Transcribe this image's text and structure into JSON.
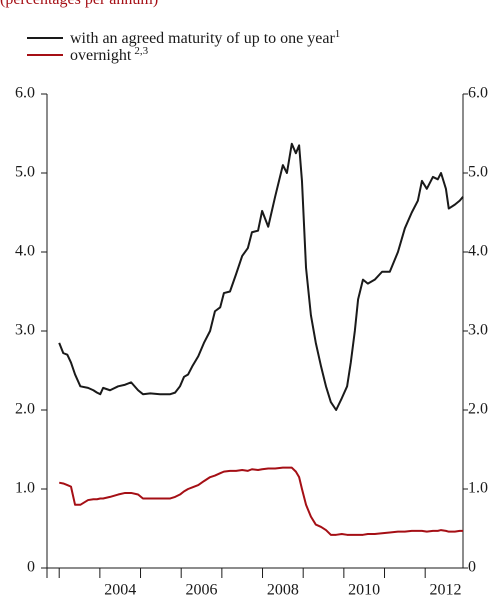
{
  "chart_data": {
    "type": "line",
    "subtitle": "(percentages per annum)",
    "x": [
      2003.0,
      2003.1,
      2003.2,
      2003.29,
      2003.39,
      2003.52,
      2003.71,
      2003.84,
      2003.93,
      2004.01,
      2004.08,
      2004.25,
      2004.45,
      2004.62,
      2004.77,
      2004.94,
      2005.06,
      2005.24,
      2005.48,
      2005.73,
      2005.85,
      2005.97,
      2006.07,
      2006.17,
      2006.27,
      2006.42,
      2006.56,
      2006.71,
      2006.83,
      2006.96,
      2007.05,
      2007.2,
      2007.35,
      2007.5,
      2007.64,
      2007.74,
      2007.89,
      2007.99,
      2008.14,
      2008.31,
      2008.5,
      2008.6,
      2008.72,
      2008.82,
      2008.9,
      2008.97,
      2009.07,
      2009.19,
      2009.31,
      2009.44,
      2009.56,
      2009.68,
      2009.81,
      2009.95,
      2010.08,
      2010.17,
      2010.27,
      2010.35,
      2010.47,
      2010.59,
      2010.76,
      2010.94,
      2011.13,
      2011.33,
      2011.5,
      2011.67,
      2011.82,
      2011.92,
      2012.04,
      2012.19,
      2012.31,
      2012.39,
      2012.51,
      2012.58,
      2012.73,
      2012.85,
      2012.93
    ],
    "series": [
      {
        "name": "with an agreed maturity of up to one year",
        "footnote": "1",
        "color": "#1a1a1a",
        "values": [
          2.85,
          2.72,
          2.7,
          2.6,
          2.45,
          2.3,
          2.28,
          2.25,
          2.22,
          2.2,
          2.28,
          2.25,
          2.3,
          2.32,
          2.35,
          2.25,
          2.2,
          2.21,
          2.2,
          2.2,
          2.22,
          2.3,
          2.42,
          2.45,
          2.55,
          2.68,
          2.85,
          3.0,
          3.25,
          3.3,
          3.48,
          3.5,
          3.72,
          3.95,
          4.05,
          4.25,
          4.27,
          4.52,
          4.32,
          4.7,
          5.1,
          5.0,
          5.37,
          5.25,
          5.35,
          4.9,
          3.8,
          3.2,
          2.85,
          2.55,
          2.3,
          2.1,
          2.0,
          2.15,
          2.3,
          2.6,
          3.0,
          3.4,
          3.65,
          3.6,
          3.65,
          3.75,
          3.75,
          4.0,
          4.3,
          4.5,
          4.65,
          4.9,
          4.8,
          4.95,
          4.92,
          5.0,
          4.8,
          4.55,
          4.6,
          4.65,
          4.7
        ]
      },
      {
        "name": "overnight",
        "footnote": "2,3",
        "color": "#a50f15",
        "values": [
          1.08,
          1.07,
          1.05,
          1.03,
          0.8,
          0.8,
          0.86,
          0.87,
          0.87,
          0.88,
          0.88,
          0.9,
          0.93,
          0.95,
          0.95,
          0.93,
          0.88,
          0.88,
          0.88,
          0.88,
          0.9,
          0.93,
          0.97,
          1.0,
          1.02,
          1.05,
          1.1,
          1.15,
          1.17,
          1.2,
          1.22,
          1.23,
          1.23,
          1.24,
          1.23,
          1.25,
          1.24,
          1.25,
          1.26,
          1.26,
          1.27,
          1.27,
          1.27,
          1.22,
          1.15,
          1.0,
          0.8,
          0.65,
          0.55,
          0.52,
          0.48,
          0.42,
          0.42,
          0.43,
          0.42,
          0.42,
          0.42,
          0.42,
          0.42,
          0.43,
          0.43,
          0.44,
          0.45,
          0.46,
          0.46,
          0.47,
          0.47,
          0.47,
          0.46,
          0.47,
          0.47,
          0.48,
          0.47,
          0.46,
          0.46,
          0.47,
          0.47
        ]
      }
    ],
    "xlim": [
      2002.7,
      2012.93
    ],
    "xticks": [
      {
        "value": 2004.5,
        "label": "2004"
      },
      {
        "value": 2006.5,
        "label": "2006"
      },
      {
        "value": 2008.5,
        "label": "2008"
      },
      {
        "value": 2010.5,
        "label": "2010"
      },
      {
        "value": 2012.5,
        "label": "2012"
      }
    ],
    "xtick_marks": [
      2003,
      2004,
      2005,
      2006,
      2007,
      2008,
      2009,
      2010,
      2011,
      2012
    ],
    "ylim": [
      0,
      6
    ],
    "yticks": [
      0,
      {
        "value": 1,
        "label": "1.0"
      },
      {
        "value": 2,
        "label": "2.0"
      },
      {
        "value": 3,
        "label": "3.0"
      },
      {
        "value": 4,
        "label": "4.0"
      },
      {
        "value": 5,
        "label": "5.0"
      },
      {
        "value": 6,
        "label": "6.0"
      }
    ],
    "right_axis_labels": true
  }
}
